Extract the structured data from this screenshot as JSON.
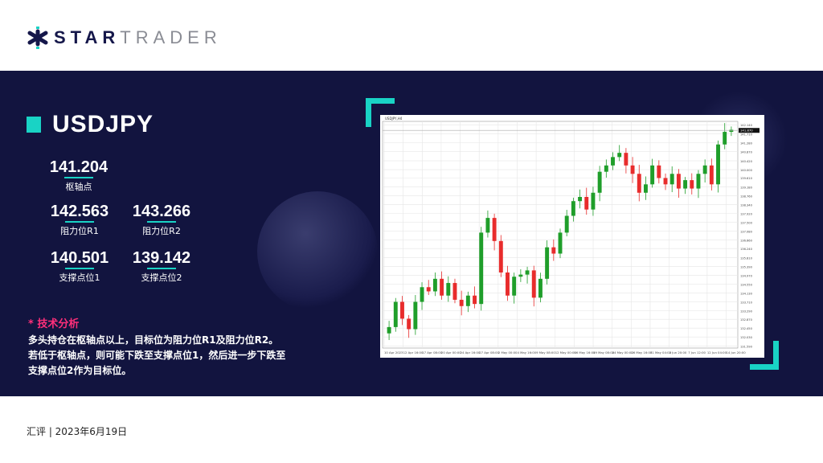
{
  "brand": {
    "part1": "STAR",
    "part2": "TRADER"
  },
  "symbol": "USDJPY",
  "levels": {
    "pivot": {
      "value": "141.204",
      "label": "枢轴点"
    },
    "r1": {
      "value": "142.563",
      "label": "阻力位R1"
    },
    "r2": {
      "value": "143.266",
      "label": "阻力位R2"
    },
    "s1": {
      "value": "140.501",
      "label": "支撑点位1"
    },
    "s2": {
      "value": "139.142",
      "label": "支撑点位2"
    }
  },
  "analysis": {
    "title": "* 技术分析",
    "lines": [
      "多头持仓在枢轴点以上，目标位为阻力位R1及阻力位R2。",
      "若低于枢轴点，则可能下跌至支撑点位1，然后进一步下跌至",
      "支撑点位2作为目标位。"
    ]
  },
  "footer": "汇评 | 2023年6月19日",
  "colors": {
    "accent": "#19d3c5",
    "band": "#12143f",
    "highlight": "#ff2f7a",
    "up": "#1f9e2a",
    "down": "#e82c2c"
  },
  "chart_data": {
    "type": "candlestick",
    "title": "USDJPY,H4",
    "ylim": [
      131.5,
      142.3
    ],
    "y_ticks": [
      "142.140",
      "141.710",
      "141.280",
      "140.870",
      "140.420",
      "140.000",
      "139.610",
      "139.180",
      "138.760",
      "138.340",
      "137.920",
      "137.500",
      "137.080",
      "136.660",
      "136.240",
      "135.810",
      "135.390",
      "134.970",
      "134.550",
      "134.130",
      "133.710",
      "133.290",
      "132.870",
      "132.450",
      "132.030",
      "131.590"
    ],
    "current_price": "141.870",
    "x_labels": [
      "10 Apr 2023",
      "12 Apr 16:00",
      "17 Apr 08:00",
      "20 Apr 00:00",
      "24 Apr 16:00",
      "27 Apr 08:00",
      "2 May 00:00",
      "4 May 16:00",
      "9 May 08:00",
      "12 May 00:00",
      "16 May 16:00",
      "19 May 08:00",
      "24 May 00:00",
      "26 May 16:00",
      "31 May 04:00",
      "2 Jun 20:00",
      "7 Jun 12:00",
      "12 Jun 04:00",
      "14 Jun 20:00"
    ],
    "closes": [
      132.5,
      133.7,
      132.9,
      132.4,
      133.7,
      134.4,
      134.2,
      134.8,
      134.0,
      134.6,
      133.8,
      133.5,
      134.0,
      133.6,
      137.0,
      137.7,
      136.6,
      135.1,
      134.0,
      134.9,
      135.0,
      135.2,
      133.9,
      134.8,
      136.3,
      136.0,
      137.0,
      137.8,
      138.5,
      138.7,
      138.1,
      138.9,
      139.9,
      140.2,
      140.6,
      140.8,
      140.2,
      139.8,
      138.9,
      139.3,
      140.2,
      139.6,
      139.3,
      139.8,
      139.1,
      139.5,
      139.1,
      139.8,
      140.2,
      139.3,
      141.2,
      141.8,
      141.9
    ]
  }
}
